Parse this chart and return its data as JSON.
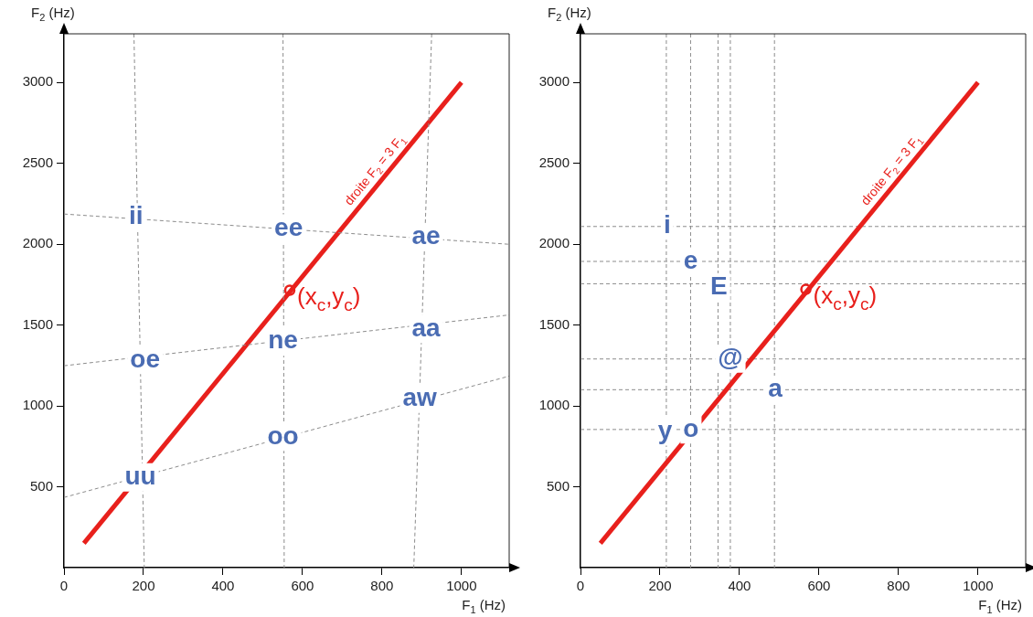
{
  "chart_data": [
    {
      "type": "scatter",
      "xlabel": "F$_{1}$ (Hz)",
      "ylabel": "F$_{2}$ (Hz)",
      "xlim": [
        0,
        1120
      ],
      "ylim": [
        0,
        3300
      ],
      "xticks": [
        0,
        200,
        400,
        600,
        800,
        1000
      ],
      "yticks": [
        500,
        1000,
        1500,
        2000,
        2500,
        3000
      ],
      "grid": false,
      "legend": false,
      "series": [
        {
          "type": "line",
          "line_style": "dashed",
          "color": "#8c8c8c",
          "x": [
            0,
            1120
          ],
          "values": [
            2186,
            1999
          ]
        },
        {
          "type": "line",
          "line_style": "dashed",
          "color": "#8c8c8c",
          "x": [
            0,
            1120
          ],
          "values": [
            1248,
            1562
          ]
        },
        {
          "type": "line",
          "line_style": "dashed",
          "color": "#8c8c8c",
          "x": [
            0,
            1120
          ],
          "values": [
            434,
            1184
          ]
        },
        {
          "type": "line",
          "line_style": "dashed",
          "color": "#8c8c8c",
          "x": [
            176,
            202
          ],
          "values": [
            3300,
            0
          ]
        },
        {
          "type": "line",
          "line_style": "dashed",
          "color": "#8c8c8c",
          "x": [
            551,
            554
          ],
          "values": [
            3300,
            0
          ]
        },
        {
          "type": "line",
          "line_style": "dashed",
          "color": "#8c8c8c",
          "x": [
            925,
            880
          ],
          "values": [
            3300,
            0
          ]
        },
        {
          "type": "line",
          "name": "droite F$_{2}$ = 3 F$_{1}$",
          "line_style": "solid",
          "color": "#e8201c",
          "x": [
            50,
            1000
          ],
          "values": [
            150,
            3000
          ]
        },
        {
          "type": "scatter",
          "name": "(x$_{c}$,y$_{c}$)",
          "marker": "circle",
          "color": "#e8201c",
          "x": [
            568
          ],
          "values": [
            1715
          ]
        }
      ],
      "annotations": [
        {
          "text": "ii",
          "x": 181,
          "y": 2166
        },
        {
          "text": "ee",
          "x": 565,
          "y": 2097
        },
        {
          "text": "ae",
          "x": 911,
          "y": 2043
        },
        {
          "text": "ne",
          "x": 551,
          "y": 1397
        },
        {
          "text": "aa",
          "x": 911,
          "y": 1475
        },
        {
          "text": "oe",
          "x": 204,
          "y": 1283
        },
        {
          "text": "aw",
          "x": 895,
          "y": 1044
        },
        {
          "text": "oo",
          "x": 551,
          "y": 809
        },
        {
          "text": "uu",
          "x": 192,
          "y": 558
        }
      ]
    },
    {
      "type": "scatter",
      "xlabel": "F$_{1}$ (Hz)",
      "ylabel": "F$_{2}$ (Hz)",
      "xlim": [
        0,
        1120
      ],
      "ylim": [
        0,
        3300
      ],
      "xticks": [
        0,
        200,
        400,
        600,
        800,
        1000
      ],
      "yticks": [
        500,
        1000,
        1500,
        2000,
        2500,
        3000
      ],
      "grid": false,
      "legend": false,
      "series": [
        {
          "type": "line",
          "name": "droite F$_{2}$ = 3 F$_{1}$",
          "line_style": "solid",
          "color": "#e8201c",
          "x": [
            50,
            1000
          ],
          "values": [
            150,
            3000
          ]
        },
        {
          "type": "scatter",
          "name": "(x$_{c}$,y$_{c}$)",
          "marker": "circle",
          "color": "#e8201c",
          "x": [
            567
          ],
          "values": [
            1720
          ]
        }
      ],
      "ref_lines": [
        {
          "axis": "x",
          "value": 216,
          "line_style": "dashed",
          "color": "#8c8c8c"
        },
        {
          "axis": "x",
          "value": 277,
          "line_style": "dashed",
          "color": "#8c8c8c"
        },
        {
          "axis": "x",
          "value": 346,
          "line_style": "dashed",
          "color": "#8c8c8c"
        },
        {
          "axis": "x",
          "value": 377,
          "line_style": "dashed",
          "color": "#8c8c8c"
        },
        {
          "axis": "x",
          "value": 488,
          "line_style": "dashed",
          "color": "#8c8c8c"
        },
        {
          "axis": "y",
          "value": 2109,
          "line_style": "dashed",
          "color": "#8c8c8c"
        },
        {
          "axis": "y",
          "value": 1893,
          "line_style": "dashed",
          "color": "#8c8c8c"
        },
        {
          "axis": "y",
          "value": 1755,
          "line_style": "dashed",
          "color": "#8c8c8c"
        },
        {
          "axis": "y",
          "value": 1290,
          "line_style": "dashed",
          "color": "#8c8c8c"
        },
        {
          "axis": "y",
          "value": 1100,
          "line_style": "dashed",
          "color": "#8c8c8c"
        },
        {
          "axis": "y",
          "value": 854,
          "line_style": "dashed",
          "color": "#8c8c8c"
        }
      ],
      "annotations": [
        {
          "text": "i",
          "x": 218,
          "y": 2114
        },
        {
          "text": "e",
          "x": 277,
          "y": 1893
        },
        {
          "text": "E",
          "x": 348,
          "y": 1733
        },
        {
          "text": "@",
          "x": 377,
          "y": 1292
        },
        {
          "text": "a",
          "x": 490,
          "y": 1100
        },
        {
          "text": "y",
          "x": 213,
          "y": 842
        },
        {
          "text": "o",
          "x": 278,
          "y": 854
        }
      ]
    }
  ]
}
